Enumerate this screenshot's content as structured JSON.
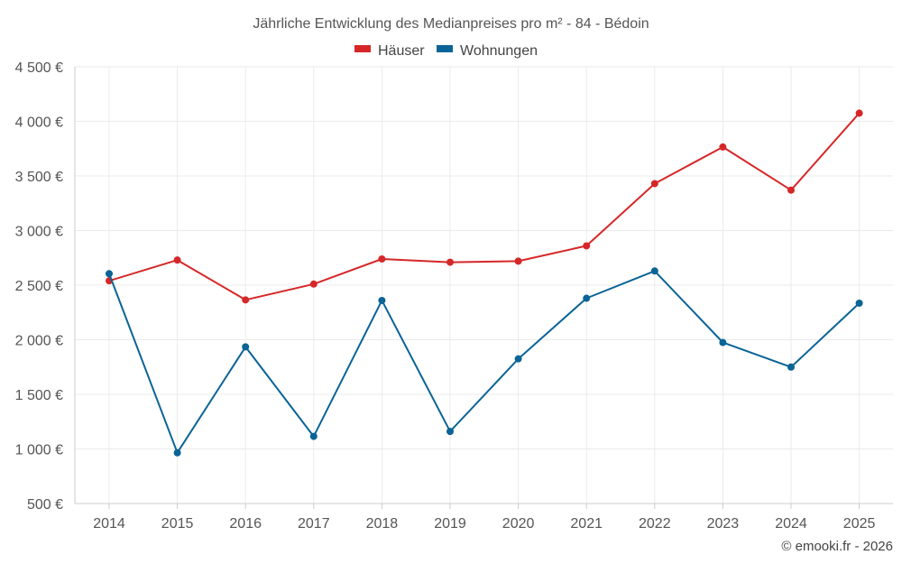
{
  "chart_data": {
    "type": "line",
    "title": "Jährliche Entwicklung des Medianpreises pro m² - 84 - Bédoin",
    "categories": [
      "2014",
      "2015",
      "2016",
      "2017",
      "2018",
      "2019",
      "2020",
      "2021",
      "2022",
      "2023",
      "2024",
      "2025"
    ],
    "series": [
      {
        "name": "Häuser",
        "color": "#d62728",
        "values": [
          2540,
          2730,
          2365,
          2510,
          2740,
          2710,
          2720,
          2860,
          3430,
          3765,
          3370,
          4075
        ]
      },
      {
        "name": "Wohnungen",
        "color": "#0a6496",
        "values": [
          2605,
          965,
          1935,
          1115,
          2360,
          1160,
          1825,
          2380,
          2630,
          1975,
          1750,
          2335
        ]
      }
    ],
    "ylim": [
      500,
      4500
    ],
    "yticks": [
      500,
      1000,
      1500,
      2000,
      2500,
      3000,
      3500,
      4000,
      4500
    ],
    "ytick_labels": [
      "500 €",
      "1 000 €",
      "1 500 €",
      "2 000 €",
      "2 500 €",
      "3 000 €",
      "3 500 €",
      "4 000 €",
      "4 500 €"
    ],
    "xlabel": "",
    "ylabel": "",
    "grid": true,
    "legend": "top-center"
  },
  "credit": "© emooki.fr - 2026"
}
